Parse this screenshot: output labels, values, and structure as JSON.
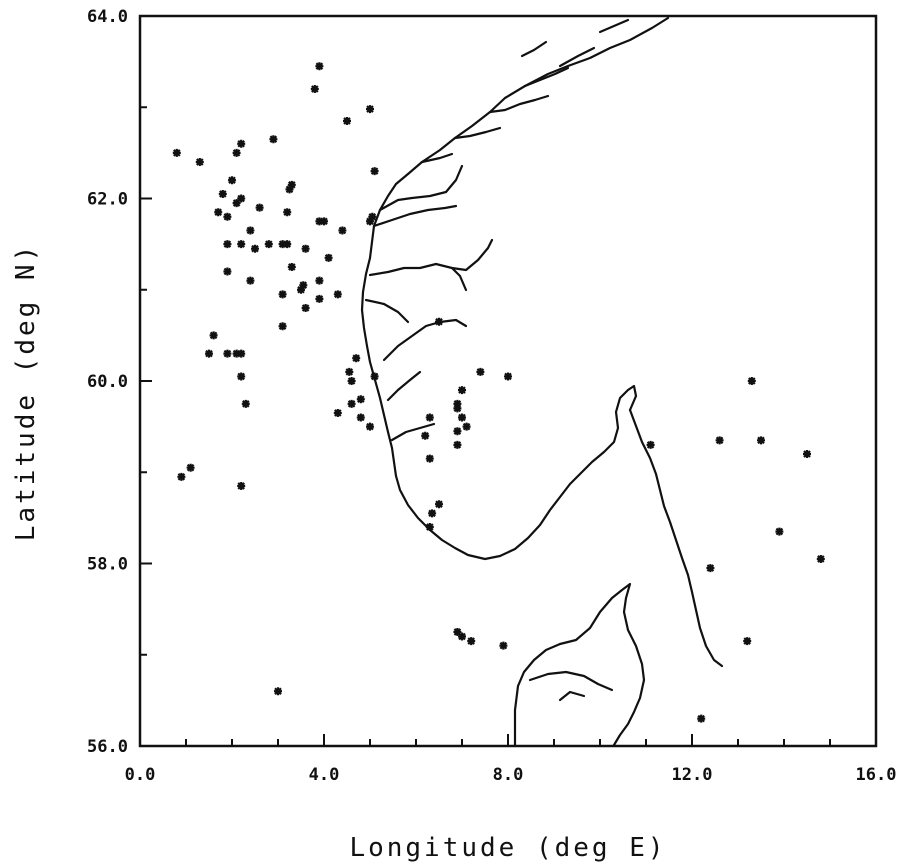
{
  "chart_data": {
    "type": "scatter",
    "title": "",
    "xlabel": "Longitude (deg E)",
    "ylabel": "Latitude (deg N)",
    "xlim": [
      0,
      16
    ],
    "ylim": [
      56,
      64
    ],
    "x_ticks": [
      0,
      4,
      8,
      12,
      16
    ],
    "x_tick_labels": [
      "0.0",
      "4.0",
      "8.0",
      "12.0",
      "16.0"
    ],
    "y_ticks": [
      56,
      58,
      60,
      62,
      64
    ],
    "y_tick_labels": [
      "56.0",
      "58.0",
      "60.0",
      "62.0",
      "64.0"
    ],
    "grid": false,
    "marker": "asterisk",
    "background": "outline map of southern Norway, western Sweden and northern Denmark",
    "series": [
      {
        "name": "",
        "points": [
          [
            3.9,
            63.45
          ],
          [
            3.8,
            63.2
          ],
          [
            5.0,
            62.98
          ],
          [
            4.5,
            62.85
          ],
          [
            0.8,
            62.5
          ],
          [
            1.3,
            62.4
          ],
          [
            2.2,
            62.6
          ],
          [
            2.1,
            62.5
          ],
          [
            2.9,
            62.65
          ],
          [
            2.0,
            62.2
          ],
          [
            1.8,
            62.05
          ],
          [
            2.2,
            62.0
          ],
          [
            2.1,
            61.95
          ],
          [
            2.6,
            61.9
          ],
          [
            1.7,
            61.85
          ],
          [
            1.9,
            61.8
          ],
          [
            3.3,
            62.15
          ],
          [
            3.25,
            62.1
          ],
          [
            3.2,
            61.85
          ],
          [
            3.9,
            61.75
          ],
          [
            4.0,
            61.75
          ],
          [
            4.4,
            61.65
          ],
          [
            2.4,
            61.65
          ],
          [
            1.9,
            61.5
          ],
          [
            2.2,
            61.5
          ],
          [
            2.5,
            61.45
          ],
          [
            2.8,
            61.5
          ],
          [
            3.1,
            61.5
          ],
          [
            3.2,
            61.5
          ],
          [
            3.6,
            61.45
          ],
          [
            4.1,
            61.35
          ],
          [
            3.3,
            61.25
          ],
          [
            1.9,
            61.2
          ],
          [
            2.4,
            61.1
          ],
          [
            3.55,
            61.05
          ],
          [
            3.9,
            61.1
          ],
          [
            3.5,
            61.0
          ],
          [
            3.1,
            60.95
          ],
          [
            3.9,
            60.9
          ],
          [
            4.3,
            60.95
          ],
          [
            3.6,
            60.8
          ],
          [
            3.1,
            60.6
          ],
          [
            1.6,
            60.5
          ],
          [
            1.5,
            60.3
          ],
          [
            1.9,
            60.3
          ],
          [
            2.1,
            60.3
          ],
          [
            2.2,
            60.3
          ],
          [
            2.2,
            60.05
          ],
          [
            2.3,
            59.75
          ],
          [
            1.1,
            59.05
          ],
          [
            0.9,
            58.95
          ],
          [
            2.2,
            58.85
          ],
          [
            4.55,
            60.1
          ],
          [
            4.6,
            60.0
          ],
          [
            4.7,
            60.25
          ],
          [
            5.1,
            60.05
          ],
          [
            4.8,
            59.8
          ],
          [
            4.6,
            59.75
          ],
          [
            4.3,
            59.65
          ],
          [
            4.8,
            59.6
          ],
          [
            5.0,
            59.5
          ],
          [
            5.1,
            62.3
          ],
          [
            5.05,
            61.8
          ],
          [
            5.0,
            61.75
          ],
          [
            6.5,
            60.65
          ],
          [
            7.4,
            60.1
          ],
          [
            8.0,
            60.05
          ],
          [
            7.0,
            59.9
          ],
          [
            6.9,
            59.75
          ],
          [
            6.9,
            59.7
          ],
          [
            7.0,
            59.6
          ],
          [
            7.1,
            59.5
          ],
          [
            6.9,
            59.45
          ],
          [
            6.3,
            59.6
          ],
          [
            6.2,
            59.4
          ],
          [
            6.3,
            59.15
          ],
          [
            6.9,
            59.3
          ],
          [
            6.5,
            58.65
          ],
          [
            6.35,
            58.55
          ],
          [
            6.3,
            58.4
          ],
          [
            6.9,
            57.25
          ],
          [
            7.0,
            57.2
          ],
          [
            7.2,
            57.15
          ],
          [
            7.9,
            57.1
          ],
          [
            3.0,
            56.6
          ],
          [
            11.1,
            59.3
          ],
          [
            12.6,
            59.35
          ],
          [
            13.3,
            60.0
          ],
          [
            13.5,
            59.35
          ],
          [
            14.5,
            59.2
          ],
          [
            13.9,
            58.35
          ],
          [
            14.8,
            58.05
          ],
          [
            12.4,
            57.95
          ],
          [
            13.2,
            57.15
          ],
          [
            12.2,
            56.3
          ]
        ]
      }
    ]
  }
}
